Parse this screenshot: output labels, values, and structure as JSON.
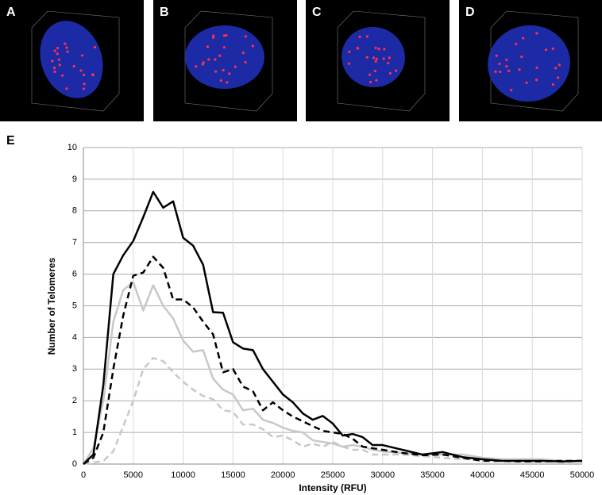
{
  "panels": [
    "A",
    "B",
    "C",
    "D"
  ],
  "chart_data": {
    "type": "line",
    "label": "E",
    "x_label": "Intensity (RFU)",
    "y_label": "Number of Telomeres",
    "x": [
      0,
      1000,
      2000,
      3000,
      4000,
      5000,
      6000,
      7000,
      8000,
      9000,
      10000,
      11000,
      12000,
      13000,
      14000,
      15000,
      16000,
      17000,
      18000,
      19000,
      20000,
      21000,
      22000,
      23000,
      24000,
      25000,
      26000,
      27000,
      28000,
      29000,
      30000,
      32000,
      34000,
      36000,
      38000,
      40000,
      42000,
      44000,
      46000,
      48000,
      50000
    ],
    "series": [
      {
        "color": "#000000",
        "dashed": false,
        "values": [
          0,
          0.3,
          2.5,
          6.0,
          6.6,
          7.05,
          7.8,
          8.6,
          8.1,
          8.3,
          7.15,
          6.9,
          6.3,
          4.8,
          4.78,
          3.85,
          3.65,
          3.6,
          3.0,
          2.6,
          2.2,
          1.95,
          1.6,
          1.4,
          1.52,
          1.28,
          0.9,
          0.95,
          0.85,
          0.6,
          0.6,
          0.45,
          0.3,
          0.38,
          0.22,
          0.15,
          0.1,
          0.1,
          0.1,
          0.08,
          0.1
        ]
      },
      {
        "color": "#000000",
        "dashed": true,
        "values": [
          0,
          0.2,
          1.0,
          3.0,
          4.7,
          5.95,
          6.05,
          6.55,
          6.2,
          5.2,
          5.2,
          4.95,
          4.5,
          4.1,
          2.9,
          3.0,
          2.45,
          2.3,
          1.7,
          1.95,
          1.7,
          1.5,
          1.35,
          1.2,
          1.05,
          1.0,
          0.95,
          0.8,
          0.55,
          0.5,
          0.45,
          0.35,
          0.28,
          0.3,
          0.2,
          0.1,
          0.1,
          0.08,
          0.08,
          0.1,
          0.1
        ]
      },
      {
        "color": "#c8c8c8",
        "dashed": false,
        "values": [
          0,
          0.5,
          2.0,
          4.5,
          5.5,
          5.75,
          4.85,
          5.65,
          5.0,
          4.6,
          3.9,
          3.55,
          3.6,
          2.7,
          2.35,
          2.2,
          1.7,
          1.75,
          1.4,
          1.3,
          1.15,
          1.05,
          1.0,
          0.75,
          0.7,
          0.65,
          0.55,
          0.6,
          0.55,
          0.45,
          0.4,
          0.35,
          0.3,
          0.3,
          0.3,
          0.2,
          0.15,
          0.15,
          0.15,
          0.1,
          0.1
        ]
      },
      {
        "color": "#c8c8c8",
        "dashed": true,
        "values": [
          0,
          0.05,
          0.1,
          0.4,
          1.2,
          2.0,
          3.0,
          3.35,
          3.25,
          2.9,
          2.6,
          2.35,
          2.15,
          2.05,
          1.7,
          1.65,
          1.25,
          1.25,
          1.1,
          0.85,
          0.9,
          0.75,
          0.55,
          0.65,
          0.55,
          0.7,
          0.55,
          0.45,
          0.45,
          0.3,
          0.3,
          0.3,
          0.25,
          0.2,
          0.15,
          0.15,
          0.1,
          0.1,
          0.1,
          0.05,
          0.1
        ]
      }
    ],
    "xlim": [
      0,
      50000
    ],
    "xticks": [
      0,
      5000,
      10000,
      15000,
      20000,
      25000,
      30000,
      35000,
      40000,
      45000,
      50000
    ],
    "ylim": [
      0,
      10
    ],
    "yticks": [
      0,
      1,
      2,
      3,
      4,
      5,
      6,
      7,
      8,
      9,
      10
    ],
    "grid": true
  }
}
